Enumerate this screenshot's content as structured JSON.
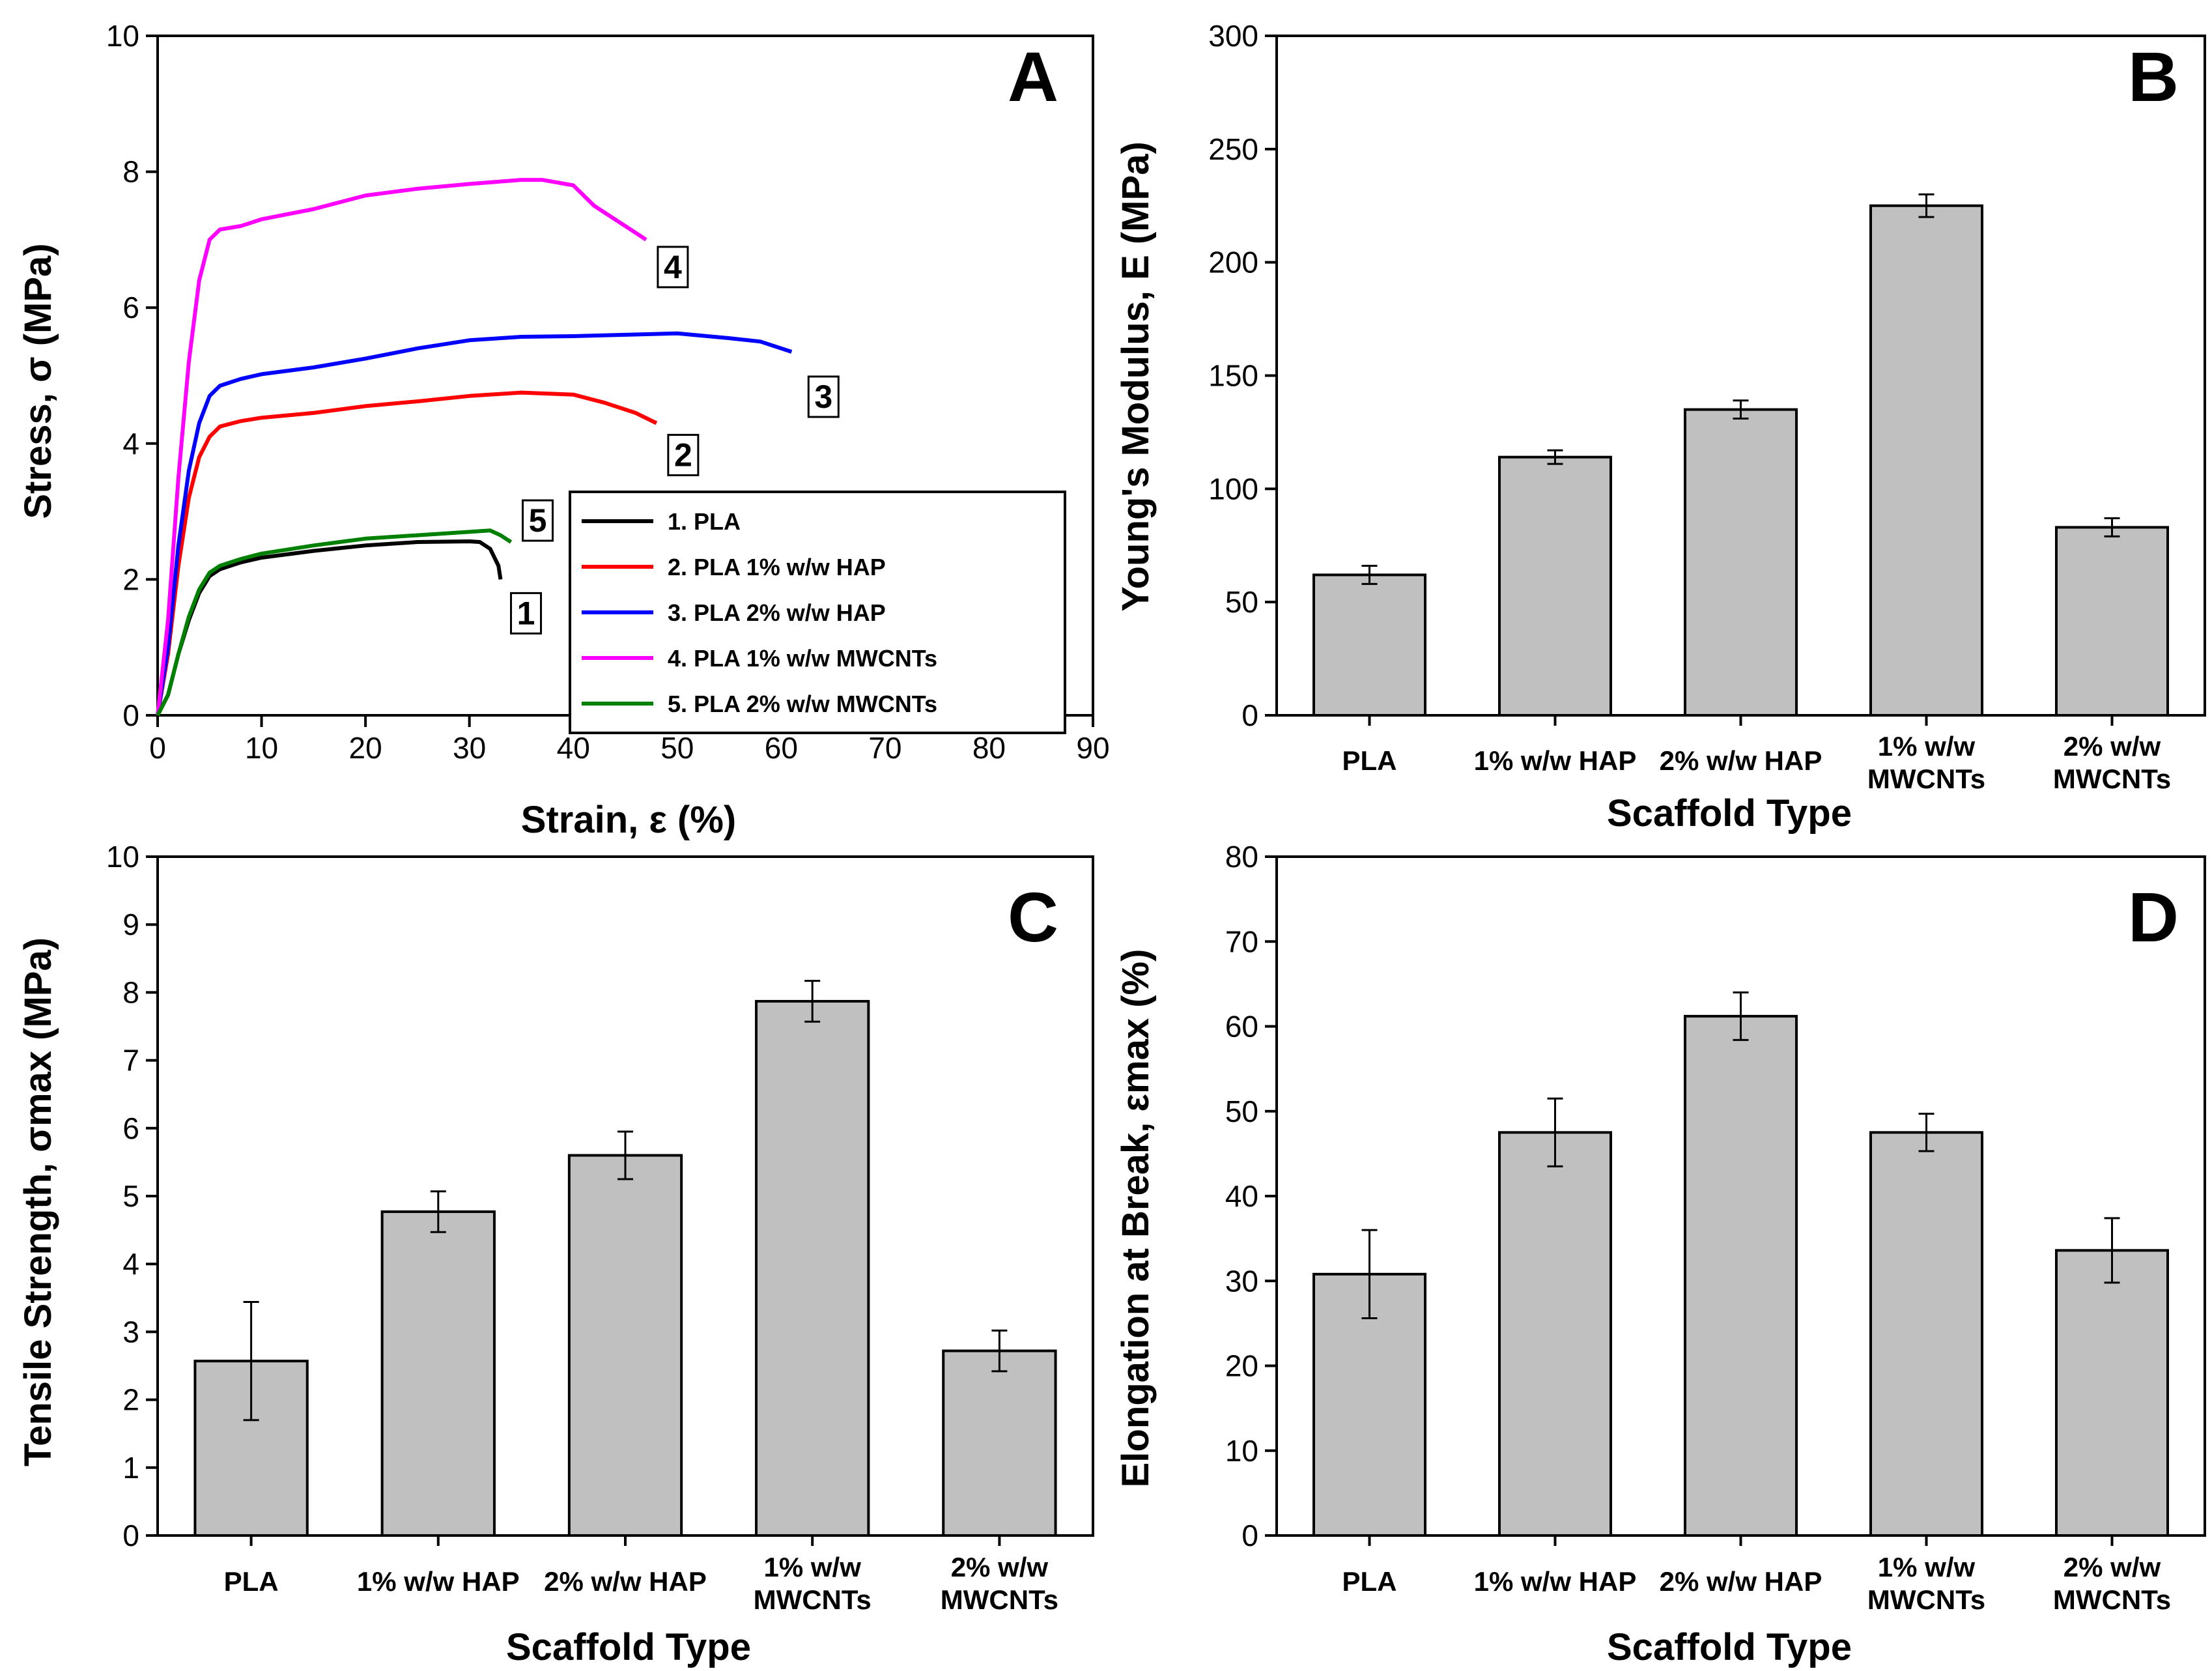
{
  "chart_data": [
    {
      "id": "A",
      "type": "line",
      "panel_label": "A",
      "xlabel": "Strain, ε (%)",
      "ylabel": "Stress, σ (MPa)",
      "xlim": [
        0,
        90
      ],
      "ylim": [
        0,
        10
      ],
      "xticks": [
        0,
        10,
        20,
        30,
        40,
        50,
        60,
        70,
        80,
        90
      ],
      "yticks": [
        0,
        2,
        4,
        6,
        8,
        10
      ],
      "legend_position": "bottom-right",
      "series": [
        {
          "name": "1. PLA",
          "tag": "1",
          "color": "#000000",
          "x": [
            0,
            1,
            2,
            3,
            4,
            5,
            6,
            8,
            10,
            15,
            20,
            25,
            30,
            31,
            32,
            32.8,
            33
          ],
          "y": [
            0,
            0.3,
            0.9,
            1.4,
            1.8,
            2.05,
            2.15,
            2.25,
            2.32,
            2.42,
            2.5,
            2.55,
            2.56,
            2.55,
            2.45,
            2.2,
            2.0
          ]
        },
        {
          "name": "2. PLA 1% w/w HAP",
          "tag": "2",
          "color": "#ff0000",
          "x": [
            0,
            1,
            2,
            3,
            4,
            5,
            6,
            8,
            10,
            15,
            20,
            25,
            30,
            35,
            40,
            43,
            46,
            48
          ],
          "y": [
            0,
            0.9,
            2.2,
            3.2,
            3.8,
            4.1,
            4.25,
            4.33,
            4.38,
            4.45,
            4.55,
            4.62,
            4.7,
            4.75,
            4.72,
            4.6,
            4.45,
            4.3
          ]
        },
        {
          "name": "3. PLA 2% w/w HAP",
          "tag": "3",
          "color": "#0000ff",
          "x": [
            0,
            1,
            2,
            3,
            4,
            5,
            6,
            8,
            10,
            15,
            20,
            25,
            30,
            35,
            40,
            45,
            50,
            55,
            58,
            61
          ],
          "y": [
            0,
            1.0,
            2.5,
            3.6,
            4.3,
            4.7,
            4.85,
            4.95,
            5.02,
            5.12,
            5.25,
            5.4,
            5.52,
            5.57,
            5.58,
            5.6,
            5.62,
            5.55,
            5.5,
            5.35
          ]
        },
        {
          "name": "4. PLA 1% w/w MWCNTs",
          "tag": "4",
          "color": "#ff00ff",
          "x": [
            0,
            1,
            2,
            3,
            4,
            5,
            6,
            8,
            10,
            15,
            20,
            25,
            30,
            35,
            37,
            40,
            42,
            45,
            47
          ],
          "y": [
            0,
            1.4,
            3.5,
            5.2,
            6.4,
            7.0,
            7.15,
            7.2,
            7.3,
            7.45,
            7.65,
            7.75,
            7.82,
            7.88,
            7.88,
            7.8,
            7.5,
            7.2,
            7.0
          ]
        },
        {
          "name": "5. PLA 2% w/w MWCNTs",
          "tag": "5",
          "color": "#008000",
          "x": [
            0,
            1,
            2,
            3,
            4,
            5,
            6,
            8,
            10,
            15,
            20,
            25,
            30,
            32,
            33,
            34
          ],
          "y": [
            0,
            0.3,
            0.9,
            1.45,
            1.85,
            2.1,
            2.2,
            2.3,
            2.38,
            2.5,
            2.6,
            2.65,
            2.7,
            2.72,
            2.65,
            2.55
          ]
        }
      ]
    },
    {
      "id": "B",
      "type": "bar",
      "panel_label": "B",
      "xlabel": "Scaffold Type",
      "ylabel": "Young's Modulus, E (MPa)",
      "ylim": [
        0,
        300
      ],
      "yticks": [
        0,
        50,
        100,
        150,
        200,
        250,
        300
      ],
      "categories": [
        "PLA",
        "1% w/w HAP",
        "2% w/w HAP",
        "1% w/w MWCNTs",
        "2% w/w MWCNTs"
      ],
      "category_lines": [
        [
          "PLA"
        ],
        [
          "1% w/w HAP"
        ],
        [
          "2% w/w HAP"
        ],
        [
          "1% w/w",
          "MWCNTs"
        ],
        [
          "2% w/w",
          "MWCNTs"
        ]
      ],
      "values": [
        62,
        114,
        135,
        225,
        83
      ],
      "errors": [
        4,
        3,
        4,
        5,
        4
      ]
    },
    {
      "id": "C",
      "type": "bar",
      "panel_label": "C",
      "xlabel": "Scaffold Type",
      "ylabel": "Tensile Strength, σmax (MPa)",
      "ylim": [
        0,
        10
      ],
      "yticks": [
        0,
        1,
        2,
        3,
        4,
        5,
        6,
        7,
        8,
        9,
        10
      ],
      "categories": [
        "PLA",
        "1% w/w HAP",
        "2% w/w HAP",
        "1% w/w MWCNTs",
        "2% w/w MWCNTs"
      ],
      "category_lines": [
        [
          "PLA"
        ],
        [
          "1% w/w HAP"
        ],
        [
          "2% w/w HAP"
        ],
        [
          "1% w/w",
          "MWCNTs"
        ],
        [
          "2% w/w",
          "MWCNTs"
        ]
      ],
      "values": [
        2.57,
        4.77,
        5.6,
        7.87,
        2.72
      ],
      "errors": [
        0.87,
        0.3,
        0.35,
        0.3,
        0.3
      ]
    },
    {
      "id": "D",
      "type": "bar",
      "panel_label": "D",
      "xlabel": "Scaffold Type",
      "ylabel": "Elongation at Break, εmax (%)",
      "ylim": [
        0,
        80
      ],
      "yticks": [
        0,
        10,
        20,
        30,
        40,
        50,
        60,
        70,
        80
      ],
      "categories": [
        "PLA",
        "1% w/w HAP",
        "2% w/w HAP",
        "1% w/w MWCNTs",
        "2% w/w MWCNTs"
      ],
      "category_lines": [
        [
          "PLA"
        ],
        [
          "1% w/w HAP"
        ],
        [
          "2% w/w HAP"
        ],
        [
          "1% w/w",
          "MWCNTs"
        ],
        [
          "2% w/w",
          "MWCNTs"
        ]
      ],
      "values": [
        30.8,
        47.5,
        61.2,
        47.5,
        33.6
      ],
      "errors": [
        5.2,
        4,
        2.8,
        2.2,
        3.8
      ]
    }
  ]
}
